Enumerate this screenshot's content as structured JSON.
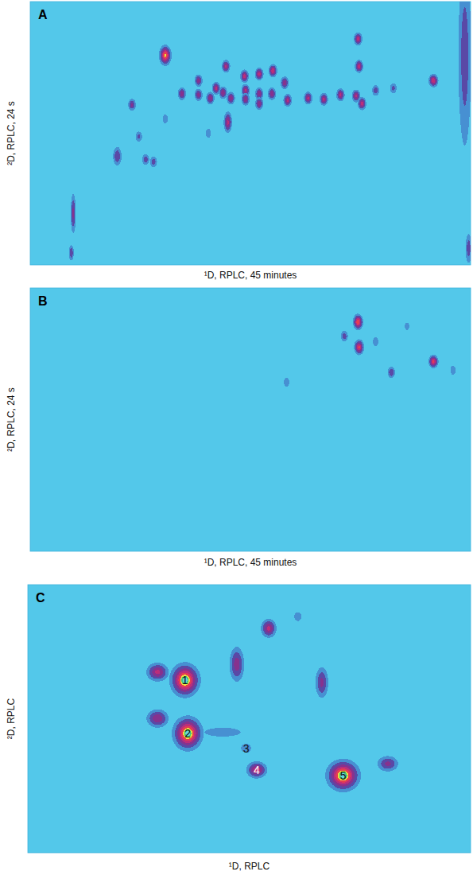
{
  "chart_data": [
    {
      "type": "contour",
      "title": "A",
      "xlabel": "¹D, RPLC, 45 minutes",
      "ylabel": "²D, RPLC, 24 s",
      "xlim": [
        0,
        45
      ],
      "ylim": [
        0,
        24
      ],
      "tick_labels": false,
      "x": [
        13.8,
        20.0,
        21.9,
        23.4,
        24.8,
        26.0,
        17.2,
        15.5,
        17.2,
        18.4,
        19.0,
        19.7,
        20.5,
        22.0,
        22.0,
        23.4,
        23.4,
        24.7,
        26.3,
        28.4,
        30.0,
        31.7,
        33.3,
        33.9,
        33.5,
        33.6,
        35.3,
        41.2,
        20.2,
        10.4,
        8.9,
        11.8,
        12.6,
        11.1,
        13.8,
        18.2,
        4.4,
        4.2,
        37.1,
        44.4,
        44.8
      ],
      "y": [
        19.1,
        18.1,
        17.2,
        17.4,
        17.7,
        16.6,
        16.8,
        15.6,
        15.5,
        15.2,
        16.1,
        15.7,
        15.2,
        15.9,
        15.1,
        15.6,
        14.7,
        15.6,
        15.0,
        15.2,
        15.1,
        15.5,
        15.4,
        14.7,
        20.6,
        18.1,
        15.9,
        16.8,
        13.0,
        14.6,
        9.9,
        9.6,
        9.4,
        11.7,
        13.3,
        12.0,
        4.7,
        1.1,
        16.1,
        19.0,
        1.5
      ],
      "values": [
        0.85,
        0.55,
        0.6,
        0.6,
        0.65,
        0.5,
        0.45,
        0.5,
        0.45,
        0.5,
        0.55,
        0.5,
        0.5,
        0.55,
        0.5,
        0.5,
        0.5,
        0.5,
        0.55,
        0.55,
        0.55,
        0.55,
        0.55,
        0.6,
        0.6,
        0.6,
        0.3,
        0.65,
        0.55,
        0.4,
        0.35,
        0.3,
        0.3,
        0.25,
        0.2,
        0.2,
        0.4,
        0.35,
        0.25,
        0.3,
        0.3
      ],
      "x_widths": [
        0.3,
        0.22,
        0.22,
        0.22,
        0.22,
        0.22,
        0.22,
        0.22,
        0.22,
        0.22,
        0.22,
        0.22,
        0.22,
        0.22,
        0.22,
        0.22,
        0.22,
        0.22,
        0.22,
        0.22,
        0.22,
        0.22,
        0.22,
        0.22,
        0.22,
        0.22,
        0.22,
        0.25,
        0.22,
        0.22,
        0.25,
        0.22,
        0.22,
        0.22,
        0.2,
        0.2,
        0.15,
        0.15,
        0.22,
        0.4,
        0.2
      ],
      "y_widths": [
        0.45,
        0.3,
        0.3,
        0.3,
        0.3,
        0.3,
        0.3,
        0.3,
        0.3,
        0.3,
        0.3,
        0.3,
        0.3,
        0.3,
        0.3,
        0.3,
        0.3,
        0.3,
        0.3,
        0.3,
        0.3,
        0.3,
        0.3,
        0.3,
        0.3,
        0.3,
        0.3,
        0.3,
        0.5,
        0.3,
        0.5,
        0.3,
        0.3,
        0.3,
        0.3,
        0.3,
        1.0,
        0.4,
        0.3,
        5.0,
        0.8
      ]
    },
    {
      "type": "contour",
      "title": "B",
      "xlabel": "¹D, RPLC, 45 minutes",
      "ylabel": "²D, RPLC, 24 s",
      "xlim": [
        0,
        45
      ],
      "ylim": [
        0,
        24
      ],
      "tick_labels": false,
      "x": [
        33.5,
        33.6,
        41.2,
        36.9,
        32.1,
        35.3,
        26.2,
        43.2,
        38.5
      ],
      "y": [
        20.9,
        18.6,
        17.3,
        16.3,
        19.6,
        19.1,
        15.4,
        16.5,
        20.5
      ],
      "values": [
        0.8,
        0.7,
        0.7,
        0.35,
        0.3,
        0.2,
        0.2,
        0.2,
        0.15
      ],
      "x_widths": [
        0.25,
        0.25,
        0.25,
        0.22,
        0.22,
        0.2,
        0.2,
        0.2,
        0.2
      ],
      "y_widths": [
        0.35,
        0.35,
        0.3,
        0.3,
        0.3,
        0.3,
        0.3,
        0.3,
        0.3
      ]
    },
    {
      "type": "contour",
      "title": "C",
      "xlabel": "¹D, RPLC",
      "ylabel": "²D, RPLC",
      "xlim": [
        0,
        100
      ],
      "ylim": [
        0,
        100
      ],
      "tick_labels": false,
      "x": [
        35.5,
        36.1,
        49.3,
        51.7,
        71.2,
        29.3,
        29.3,
        47.2,
        54.4,
        61.0,
        66.4,
        81.3,
        44.0
      ],
      "y": [
        64.4,
        44.5,
        39.0,
        30.9,
        28.8,
        67.4,
        50.1,
        70.3,
        83.7,
        88.1,
        63.5,
        33.2,
        45.0
      ],
      "values": [
        1.0,
        1.0,
        0.15,
        0.6,
        1.0,
        0.55,
        0.5,
        0.45,
        0.55,
        0.2,
        0.4,
        0.4,
        0.2
      ],
      "x_widths": [
        1.6,
        1.6,
        1.0,
        1.2,
        1.8,
        1.3,
        1.3,
        0.9,
        0.9,
        0.6,
        0.8,
        1.3,
        3.0
      ],
      "y_widths": [
        3.0,
        3.0,
        1.5,
        1.6,
        2.8,
        1.8,
        1.8,
        3.5,
        1.8,
        1.2,
        3.2,
        1.6,
        1.2
      ],
      "labels": [
        "1",
        "2",
        "3",
        "4",
        "5",
        null,
        null,
        null,
        null,
        null,
        null,
        null,
        null
      ]
    }
  ]
}
